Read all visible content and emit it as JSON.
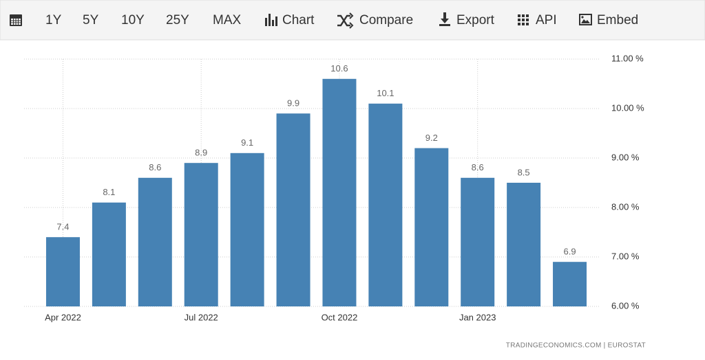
{
  "toolbar": {
    "ranges": [
      "1Y",
      "5Y",
      "10Y",
      "25Y",
      "MAX"
    ],
    "actions": [
      "Chart",
      "Compare",
      "Export",
      "API",
      "Embed"
    ]
  },
  "footer": "TRADINGECONOMICS.COM | EUROSTAT",
  "chart_data": {
    "type": "bar",
    "categories": [
      "Apr 2022",
      null,
      null,
      "Jul 2022",
      null,
      null,
      "Oct 2022",
      null,
      null,
      "Jan 2023",
      null,
      null
    ],
    "values": [
      7.4,
      8.1,
      8.6,
      8.9,
      9.1,
      9.9,
      10.6,
      10.1,
      9.2,
      8.6,
      8.5,
      6.9
    ],
    "color": "#4682b4",
    "ylim": [
      6,
      11
    ],
    "yticks": [
      {
        "value": 6,
        "label": "6.00 %"
      },
      {
        "value": 7,
        "label": "7.00 %"
      },
      {
        "value": 8,
        "label": "8.00 %"
      },
      {
        "value": 9,
        "label": "9.00 %"
      },
      {
        "value": 10,
        "label": "10.00 %"
      },
      {
        "value": 11,
        "label": "11.00 %"
      }
    ],
    "grid": true
  }
}
